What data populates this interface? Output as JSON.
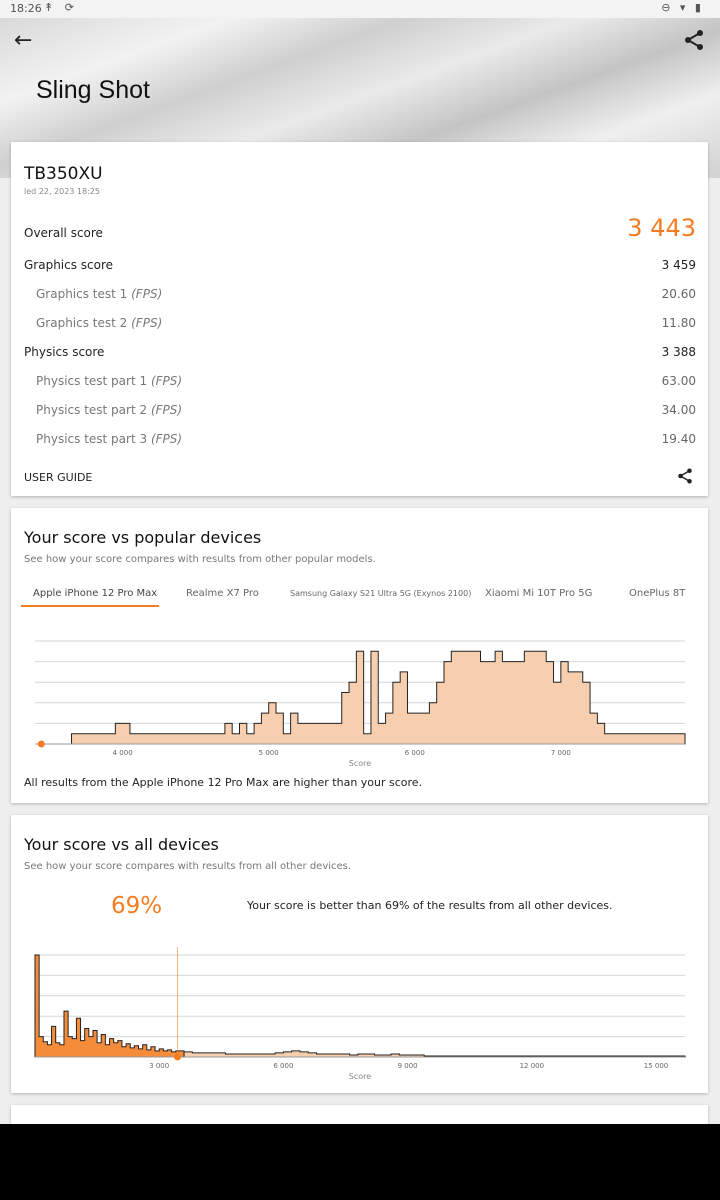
{
  "status_bar": {
    "time": "18:26",
    "left_icons": "↟ ⟳",
    "right_icons": "⊖ ▾ ▮"
  },
  "header": {
    "title": "Sling Shot",
    "back_icon": "arrow-left-icon",
    "share_icon": "share-icon"
  },
  "result": {
    "device": "TB350XU",
    "date": "led 22, 2023 18:25",
    "overall_label": "Overall score",
    "overall_value": "3 443",
    "graphics_label": "Graphics score",
    "graphics_value": "3 459",
    "gt1_label": "Graphics test 1 ",
    "gt1_unit": "(FPS)",
    "gt1_value": "20.60",
    "gt2_label": "Graphics test 2 ",
    "gt2_unit": "(FPS)",
    "gt2_value": "11.80",
    "physics_label": "Physics score",
    "physics_value": "3 388",
    "pt1_label": "Physics test part 1 ",
    "pt1_unit": "(FPS)",
    "pt1_value": "63.00",
    "pt2_label": "Physics test part 2 ",
    "pt2_unit": "(FPS)",
    "pt2_value": "34.00",
    "pt3_label": "Physics test part 3 ",
    "pt3_unit": "(FPS)",
    "pt3_value": "19.40",
    "user_guide": "USER GUIDE"
  },
  "popular": {
    "title": "Your score vs popular devices",
    "subtitle": "See how your score compares with results from other popular models.",
    "tabs": [
      "Apple iPhone 12 Pro Max",
      "Realme X7 Pro",
      "Samsung Galaxy S21 Ultra 5G (Exynos 2100)",
      "Xiaomi Mi 10T Pro 5G",
      "OnePlus 8T"
    ],
    "footer": "All results from the Apple iPhone 12 Pro Max are higher than your score."
  },
  "all": {
    "title": "Your score vs all devices",
    "subtitle": "See how your score compares with results from all other devices.",
    "percent": "69%",
    "percent_text": "Your score is better than 69% of the results from all other devices."
  },
  "colors": {
    "accent": "#f57c22",
    "fill_light": "#f8cfae",
    "fill_dark": "#f58c3a"
  },
  "chart_data": [
    {
      "type": "area",
      "xlabel": "Score",
      "xticks": [
        4000,
        5000,
        6000,
        7000
      ],
      "xlim": [
        3400,
        7850
      ],
      "marker": 3443,
      "x": [
        3650,
        3700,
        3750,
        3800,
        3850,
        3900,
        3950,
        4000,
        4050,
        4100,
        4150,
        4200,
        4250,
        4300,
        4350,
        4400,
        4450,
        4500,
        4550,
        4600,
        4650,
        4700,
        4750,
        4800,
        4850,
        4900,
        4950,
        5000,
        5050,
        5100,
        5150,
        5200,
        5250,
        5300,
        5350,
        5400,
        5450,
        5500,
        5550,
        5600,
        5650,
        5700,
        5750,
        5800,
        5850,
        5900,
        5950,
        6000,
        6050,
        6100,
        6150,
        6200,
        6250,
        6300,
        6350,
        6400,
        6450,
        6500,
        6550,
        6600,
        6650,
        6700,
        6750,
        6800,
        6850,
        6900,
        6950,
        7000,
        7050,
        7100,
        7150,
        7200,
        7250,
        7300,
        7350,
        7400,
        7450,
        7500,
        7550,
        7600,
        7650,
        7700,
        7750,
        7800
      ],
      "y": [
        1,
        1,
        1,
        1,
        1,
        1,
        2,
        2,
        1,
        1,
        1,
        1,
        1,
        1,
        1,
        1,
        1,
        1,
        1,
        1,
        1,
        2,
        1,
        2,
        1,
        2,
        3,
        4,
        3,
        1,
        3,
        2,
        2,
        2,
        2,
        2,
        2,
        5,
        6,
        9,
        1,
        9,
        2,
        3,
        6,
        7,
        3,
        3,
        3,
        4,
        6,
        8,
        9,
        9,
        9,
        9,
        8,
        8,
        9,
        8,
        8,
        8,
        9,
        9,
        9,
        8,
        6,
        8,
        7,
        7,
        6,
        3,
        2,
        1,
        1,
        1,
        1,
        1,
        1,
        1,
        1,
        1,
        1,
        1
      ],
      "ymax": 10
    },
    {
      "type": "area",
      "xlabel": "Score",
      "xticks": [
        3000,
        6000,
        9000,
        12000,
        15000
      ],
      "xlim": [
        0,
        15700
      ],
      "marker": 3443,
      "x": [
        0,
        100,
        200,
        300,
        400,
        500,
        600,
        700,
        800,
        900,
        1000,
        1100,
        1200,
        1300,
        1400,
        1500,
        1600,
        1700,
        1800,
        1900,
        2000,
        2100,
        2200,
        2300,
        2400,
        2500,
        2600,
        2700,
        2800,
        2900,
        3000,
        3100,
        3200,
        3300,
        3400,
        3600,
        3800,
        4000,
        4200,
        4400,
        4600,
        4800,
        5000,
        5200,
        5400,
        5600,
        5800,
        6000,
        6200,
        6400,
        6600,
        6800,
        7000,
        7200,
        7400,
        7600,
        7800,
        8000,
        8200,
        8400,
        8600,
        8800,
        9000,
        9200,
        9400,
        9600,
        9800,
        10000,
        10500,
        11000,
        11500,
        12000,
        13000,
        14000,
        15000,
        15600
      ],
      "y": [
        100,
        20,
        15,
        12,
        30,
        14,
        12,
        45,
        20,
        18,
        38,
        16,
        28,
        20,
        26,
        14,
        22,
        12,
        18,
        14,
        16,
        10,
        13,
        9,
        11,
        8,
        12,
        7,
        10,
        6,
        8,
        6,
        7,
        5,
        6,
        5,
        4,
        4,
        4,
        4,
        3,
        3,
        3,
        3,
        3,
        3,
        4,
        5,
        6,
        5,
        4,
        3,
        3,
        3,
        3,
        2,
        3,
        3,
        2,
        2,
        3,
        2,
        2,
        2,
        1,
        1,
        1,
        1,
        1,
        1,
        1,
        1,
        1,
        1,
        1,
        1
      ],
      "ymax": 100
    }
  ]
}
